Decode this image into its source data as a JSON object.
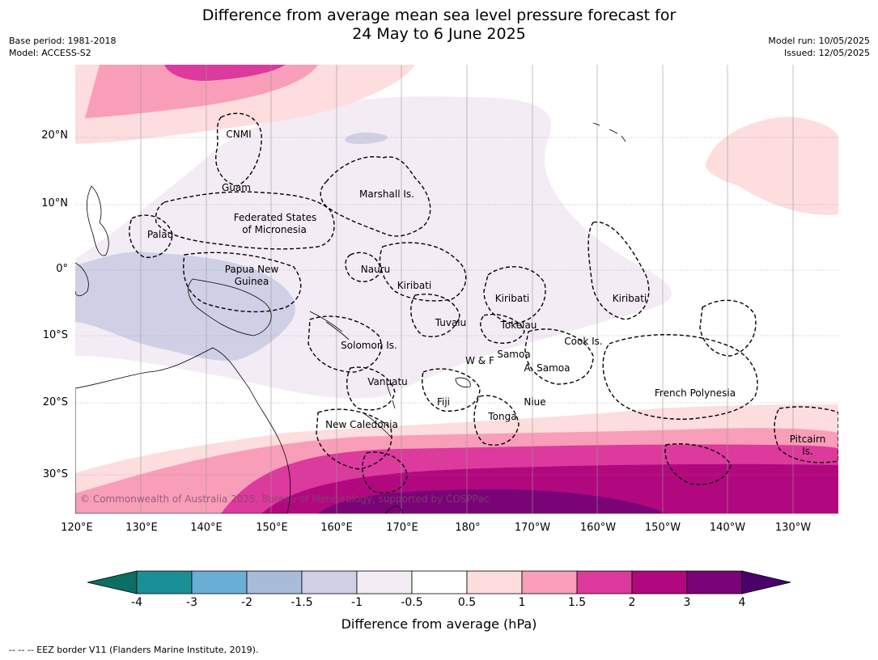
{
  "title": {
    "line1": "Difference from average mean sea level pressure forecast for",
    "line2": "24 May to 6 June 2025"
  },
  "meta": {
    "base_period": "Base period: 1981-2018",
    "model": "Model: ACCESS-S2",
    "model_run": "Model run: 10/05/2025",
    "issued": "Issued: 12/05/2025"
  },
  "axes": {
    "lat_ticks": [
      "20°N",
      "10°N",
      "0°",
      "10°S",
      "20°S",
      "30°S"
    ],
    "lon_ticks": [
      "120°E",
      "130°E",
      "140°E",
      "150°E",
      "160°E",
      "170°E",
      "180°",
      "170°W",
      "160°W",
      "150°W",
      "140°W",
      "130°W"
    ]
  },
  "regions": [
    {
      "label": "CNMI"
    },
    {
      "label": "Guam"
    },
    {
      "label": "Marshall Is."
    },
    {
      "label": "Federated States"
    },
    {
      "label": "of Micronesia"
    },
    {
      "label": "Palau"
    },
    {
      "label": "Papua New"
    },
    {
      "label": "Guinea"
    },
    {
      "label": "Nauru"
    },
    {
      "label": "Kiribati"
    },
    {
      "label": "Kiribati"
    },
    {
      "label": "Kiribati"
    },
    {
      "label": "Tuvalu"
    },
    {
      "label": "Tokelau"
    },
    {
      "label": "Cook Is."
    },
    {
      "label": "Solomon Is."
    },
    {
      "label": "Samoa"
    },
    {
      "label": "W & F"
    },
    {
      "label": "A. Samoa"
    },
    {
      "label": "Vanuatu"
    },
    {
      "label": "Fiji"
    },
    {
      "label": "Niue"
    },
    {
      "label": "Tonga"
    },
    {
      "label": "French Polynesia"
    },
    {
      "label": "New Caledonia"
    },
    {
      "label": "Pitcairn"
    },
    {
      "label": "Is."
    }
  ],
  "copyright": "© Commonwealth of Australia 2025, Bureau of Meteorology, supported by COSPPac",
  "colorbar": {
    "title": "Difference from average (hPa)",
    "ticks": [
      "-4",
      "-3",
      "-2",
      "-1.5",
      "-1",
      "-0.5",
      "0.5",
      "1",
      "1.5",
      "2",
      "3",
      "4"
    ],
    "colors": [
      "#0d6e63",
      "#1b8f98",
      "#6aadd5",
      "#a8bbd8",
      "#cfd0e5",
      "#f3ecf4",
      "#ffffff",
      "#fddddd",
      "#f89eb8",
      "#dc3a9c",
      "#b2087f",
      "#7a0477",
      "#4a006a"
    ]
  },
  "footer": "--  --  -- EEZ border V11 (Flanders Marine Institute, 2019)."
}
